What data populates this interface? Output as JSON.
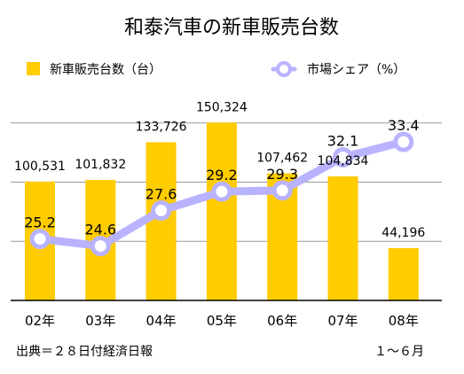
{
  "chart_data": {
    "type": "bar",
    "title": "和泰汽車の新車販売台数",
    "categories": [
      "02年",
      "03年",
      "04年",
      "05年",
      "06年",
      "07年",
      "08年"
    ],
    "series": [
      {
        "name": "新車販売台数（台）",
        "type": "bar",
        "axis": "left",
        "color": "#ffcc00",
        "values": [
          100531,
          101832,
          133726,
          150324,
          107462,
          104834,
          44196
        ],
        "labels": [
          "100,531",
          "101,832",
          "133,726",
          "150,324",
          "107,462",
          "104,834",
          "44,196"
        ]
      },
      {
        "name": "市場シェア（%）",
        "type": "line",
        "axis": "right",
        "color": "#b9b3ff",
        "values": [
          25.2,
          24.6,
          27.6,
          29.2,
          29.3,
          32.1,
          33.4
        ],
        "labels": [
          "25.2",
          "24.6",
          "27.6",
          "29.2",
          "29.3",
          "32.1",
          "33.4"
        ]
      }
    ],
    "ylim_left": [
      0,
      200000
    ],
    "ylim_right": [
      20,
      40
    ],
    "grid": true,
    "legend": "top",
    "footer_left": "出典＝２８日付経済日報",
    "footer_right": "１～６月"
  }
}
